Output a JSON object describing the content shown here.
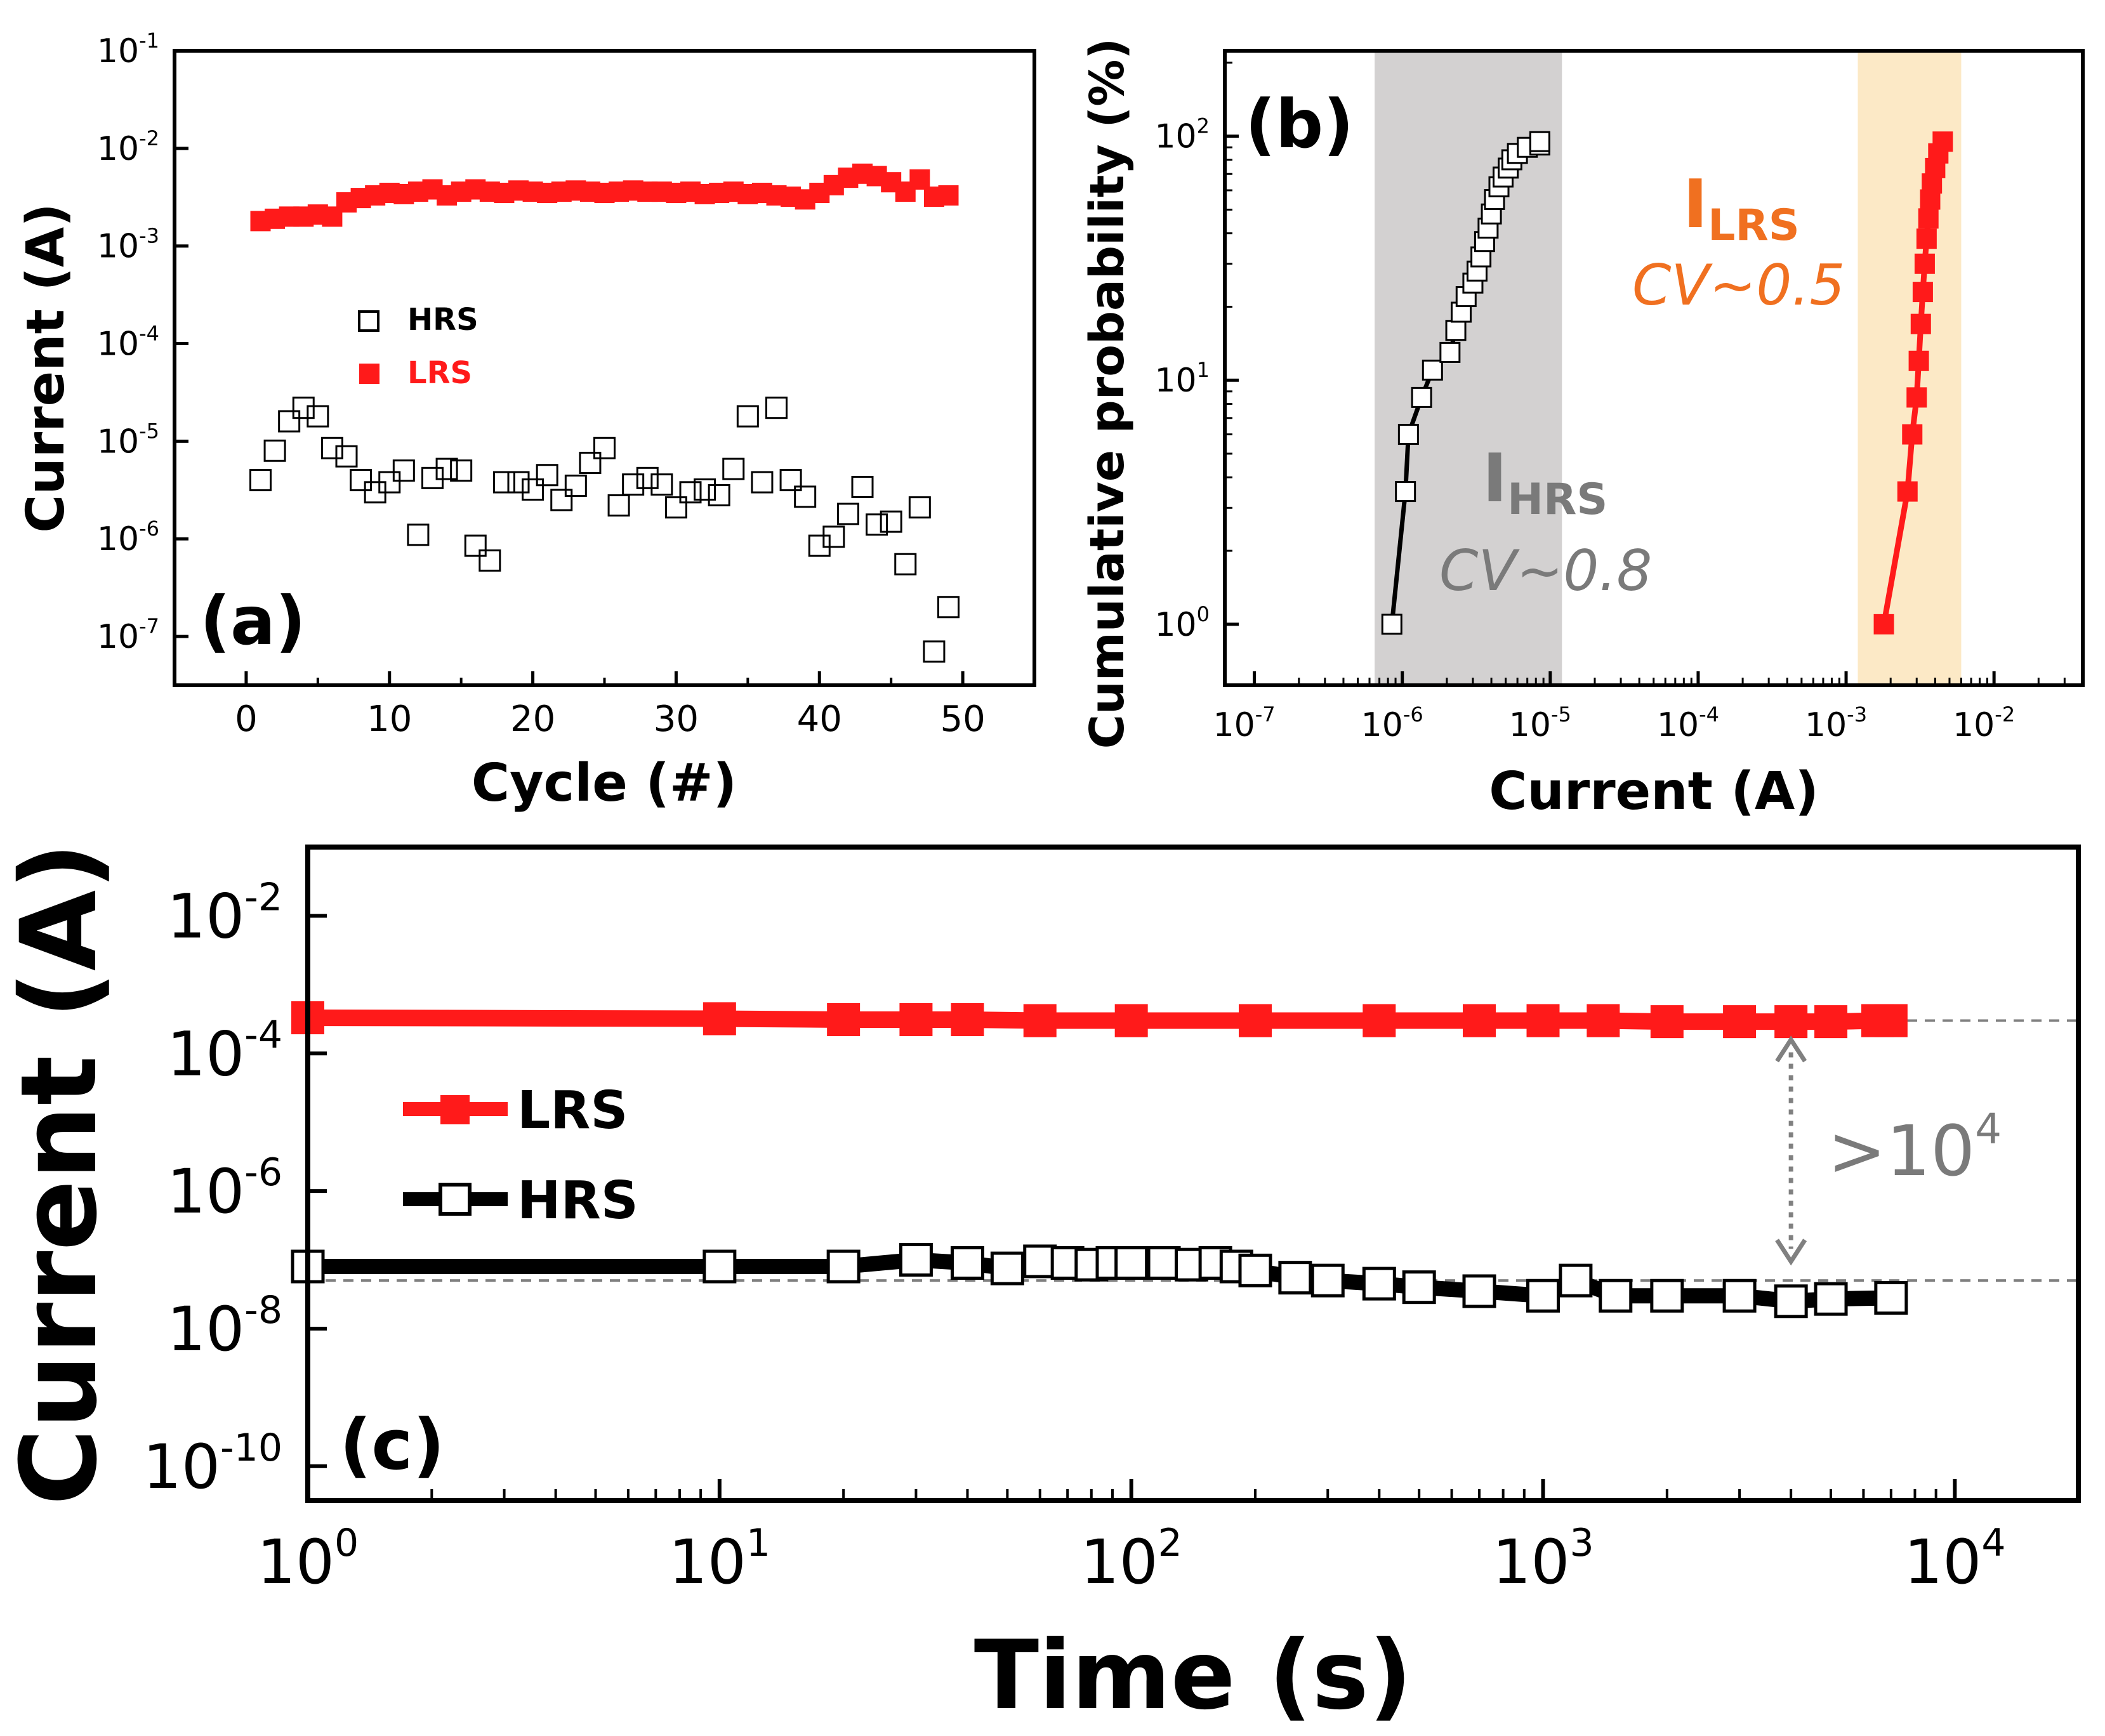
{
  "colors": {
    "lrs": "#ff1a1a",
    "hrs": "#000000",
    "hrs_band": "#d3d1d1",
    "lrs_band": "#fce9c6",
    "hrs_label": "#7a7a7a",
    "lrs_label": "#f07020",
    "ref_line": "#808080"
  },
  "chart_data": [
    {
      "panel_label": "(a)",
      "type": "scatter",
      "xlabel": "Cycle (#)",
      "ylabel": "Current (A)",
      "x_scale": "linear",
      "y_scale": "log",
      "xlim": [
        -5,
        55
      ],
      "ylim_exp": [
        -7.5,
        -1
      ],
      "x_ticks": [
        0,
        10,
        20,
        30,
        40,
        50
      ],
      "x_tick_labels": [
        "0",
        "10",
        "20",
        "30",
        "40",
        "50"
      ],
      "y_ticks_exp": [
        -7,
        -6,
        -5,
        -4,
        -3,
        -2,
        -1
      ],
      "y_tick_labels": [
        "10",
        "10",
        "10",
        "10",
        "10",
        "10",
        "10"
      ],
      "y_tick_sup": [
        "-7",
        "-6",
        "-5",
        "-4",
        "-3",
        "-2",
        "-1"
      ],
      "legend": [
        {
          "name": "HRS",
          "marker": "open-square"
        },
        {
          "name": "LRS",
          "marker": "filled-square"
        }
      ],
      "series": [
        {
          "name": "LRS",
          "x": [
            1,
            2,
            3,
            4,
            5,
            6,
            7,
            8,
            9,
            10,
            11,
            12,
            13,
            14,
            15,
            16,
            17,
            18,
            19,
            20,
            21,
            22,
            23,
            24,
            25,
            26,
            27,
            28,
            29,
            30,
            31,
            32,
            33,
            34,
            35,
            36,
            37,
            38,
            39,
            40,
            41,
            42,
            43,
            44,
            45,
            46,
            47,
            48,
            49
          ],
          "y": [
            0.0018,
            0.0019,
            0.002,
            0.002,
            0.0021,
            0.002,
            0.0028,
            0.0031,
            0.0033,
            0.0035,
            0.0034,
            0.0036,
            0.0038,
            0.0033,
            0.0036,
            0.0038,
            0.0036,
            0.0035,
            0.0037,
            0.0036,
            0.0035,
            0.0036,
            0.0037,
            0.0036,
            0.0035,
            0.0036,
            0.0037,
            0.0036,
            0.0036,
            0.0035,
            0.0036,
            0.0034,
            0.0035,
            0.0036,
            0.0034,
            0.0035,
            0.0033,
            0.0032,
            0.003,
            0.0035,
            0.0042,
            0.005,
            0.0055,
            0.0052,
            0.0045,
            0.0036,
            0.0048,
            0.0032,
            0.0033
          ]
        },
        {
          "name": "HRS",
          "x": [
            1,
            2,
            3,
            4,
            5,
            6,
            7,
            8,
            9,
            10,
            11,
            12,
            13,
            14,
            15,
            16,
            17,
            18,
            19,
            20,
            21,
            22,
            23,
            24,
            25,
            26,
            27,
            28,
            29,
            30,
            31,
            32,
            33,
            34,
            35,
            36,
            37,
            38,
            39,
            40,
            41,
            42,
            43,
            44,
            45,
            46,
            47,
            48,
            49
          ],
          "y": [
            4e-06,
            8e-06,
            1.6e-05,
            2.2e-05,
            1.8e-05,
            8.5e-06,
            7e-06,
            4e-06,
            3e-06,
            3.8e-06,
            5e-06,
            1.1e-06,
            4.2e-06,
            5.2e-06,
            5e-06,
            8.5e-07,
            6e-07,
            3.8e-06,
            3.8e-06,
            3.2e-06,
            4.5e-06,
            2.5e-06,
            3.5e-06,
            6e-06,
            8.5e-06,
            2.2e-06,
            3.6e-06,
            4.2e-06,
            3.6e-06,
            2.1e-06,
            3e-06,
            3.2e-06,
            2.8e-06,
            5.2e-06,
            1.8e-05,
            3.8e-06,
            2.2e-05,
            4e-06,
            2.7e-06,
            8.5e-07,
            1.05e-06,
            1.8e-06,
            3.4e-06,
            1.4e-06,
            1.5e-06,
            5.5e-07,
            2.1e-06,
            7e-08,
            2e-07
          ]
        }
      ]
    },
    {
      "panel_label": "(b)",
      "type": "line",
      "xlabel": "Current (A)",
      "ylabel": "Cumulative probability (%)",
      "x_scale": "log",
      "y_scale": "log",
      "xlim_exp": [
        -7.2,
        -1.4
      ],
      "ylim_exp": [
        -0.25,
        2.35
      ],
      "x_ticks_exp": [
        -7,
        -6,
        -5,
        -4,
        -3,
        -2
      ],
      "x_tick_labels": [
        "10",
        "10",
        "10",
        "10",
        "10",
        "10"
      ],
      "x_tick_sup": [
        "-7",
        "-6",
        "-5",
        "-4",
        "-3",
        "-2"
      ],
      "y_ticks_exp": [
        0,
        1,
        2
      ],
      "y_tick_labels": [
        "10",
        "10",
        "10"
      ],
      "y_tick_sup": [
        "0",
        "1",
        "2"
      ],
      "bands": [
        {
          "name": "HRS",
          "x_range": [
            6.5e-07,
            1.2e-05
          ]
        },
        {
          "name": "LRS",
          "x_range": [
            0.0012,
            0.006
          ]
        }
      ],
      "annotations": [
        {
          "id": "hrs",
          "main": "I",
          "sub": "HRS",
          "cv": "CV~0.8"
        },
        {
          "id": "lrs",
          "main": "I",
          "sub": "LRS",
          "cv": "CV~0.5"
        }
      ],
      "series": [
        {
          "name": "HRS",
          "x": [
            8.5e-07,
            1.05e-06,
            1.1e-06,
            1.35e-06,
            1.6e-06,
            2.1e-06,
            2.3e-06,
            2.5e-06,
            2.7e-06,
            3e-06,
            3.2e-06,
            3.4e-06,
            3.6e-06,
            3.8e-06,
            4e-06,
            4.2e-06,
            4.5e-06,
            4.8e-06,
            5.2e-06,
            5.5e-06,
            6e-06,
            7e-06,
            8.5e-06,
            8.5e-06
          ],
          "y": [
            1,
            3.5,
            6,
            8.5,
            11,
            13,
            16,
            19,
            22,
            25,
            28,
            32,
            37,
            42,
            48,
            55,
            62,
            68,
            74,
            80,
            85,
            90,
            92,
            95
          ]
        },
        {
          "name": "LRS",
          "x": [
            0.0018,
            0.0026,
            0.0028,
            0.003,
            0.0031,
            0.0032,
            0.0033,
            0.0034,
            0.0035,
            0.0036,
            0.0037,
            0.0038,
            0.004,
            0.0042,
            0.0045
          ],
          "y": [
            1,
            3.5,
            6,
            8.5,
            12,
            17,
            23,
            30,
            38,
            46,
            55,
            64,
            74,
            85,
            95
          ]
        }
      ]
    },
    {
      "panel_label": "(c)",
      "type": "line",
      "xlabel": "Time (s)",
      "ylabel": "Current (A)",
      "x_scale": "log",
      "y_scale": "log",
      "xlim_exp": [
        0,
        4.3
      ],
      "ylim_exp": [
        -10.5,
        -1
      ],
      "x_ticks_exp": [
        0,
        1,
        2,
        3,
        4
      ],
      "x_tick_labels": [
        "10",
        "10",
        "10",
        "10",
        "10"
      ],
      "x_tick_sup": [
        "0",
        "1",
        "2",
        "3",
        "4"
      ],
      "y_ticks_exp": [
        -10,
        -8,
        -6,
        -4,
        -2
      ],
      "y_tick_labels": [
        "10",
        "10",
        "10",
        "10",
        "10"
      ],
      "y_tick_sup": [
        "-10",
        "-8",
        "-6",
        "-4",
        "-2"
      ],
      "legend": [
        {
          "name": "LRS",
          "marker": "filled-square-line"
        },
        {
          "name": "HRS",
          "marker": "open-square-line"
        }
      ],
      "reference_levels": [
        0.0003,
        5e-08
      ],
      "ratio_annotation": {
        "base": ">10",
        "sup": "4",
        "at_x": 4000
      },
      "series": [
        {
          "name": "LRS",
          "x": [
            1,
            10,
            20,
            30,
            40,
            60,
            100,
            200,
            400,
            700,
            1000,
            1400,
            2000,
            3000,
            4000,
            5000,
            6500,
            7000
          ],
          "y": [
            0.00033,
            0.00032,
            0.00031,
            0.00031,
            0.00031,
            0.0003,
            0.0003,
            0.0003,
            0.0003,
            0.0003,
            0.0003,
            0.0003,
            0.00029,
            0.00029,
            0.00029,
            0.00029,
            0.0003,
            0.0003
          ]
        },
        {
          "name": "HRS",
          "x": [
            1,
            10,
            20,
            30,
            40,
            50,
            60,
            70,
            80,
            90,
            100,
            120,
            140,
            160,
            180,
            200,
            250,
            300,
            400,
            500,
            700,
            1000,
            1200,
            1500,
            2000,
            3000,
            4000,
            5000,
            7000
          ],
          "y": [
            8e-08,
            8e-08,
            8e-08,
            1e-07,
            9e-08,
            7.5e-08,
            9.5e-08,
            9e-08,
            8.5e-08,
            9e-08,
            9e-08,
            9e-08,
            8.5e-08,
            9e-08,
            8e-08,
            7e-08,
            5.5e-08,
            5e-08,
            4.5e-08,
            4e-08,
            3.5e-08,
            3e-08,
            5e-08,
            3e-08,
            3e-08,
            3e-08,
            2.5e-08,
            2.7e-08,
            2.8e-08
          ]
        }
      ]
    }
  ]
}
